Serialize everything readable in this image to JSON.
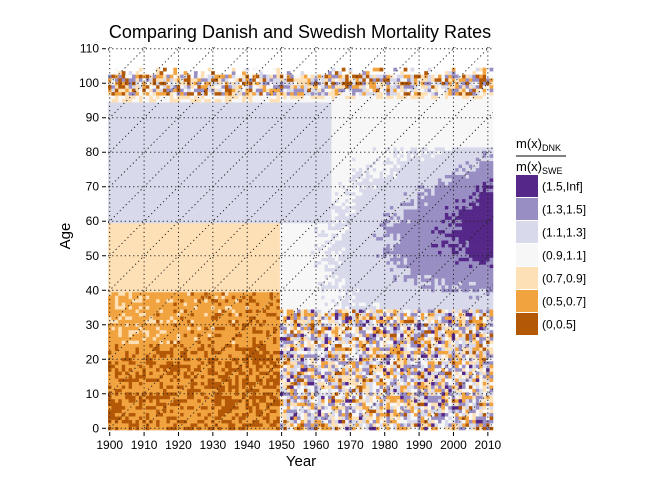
{
  "chart_data": {
    "type": "heatmap",
    "title": "Comparing Danish and Swedish Mortality Rates",
    "xlabel": "Year",
    "ylabel": "Age",
    "x_range": [
      1900,
      2011
    ],
    "y_range": [
      0,
      110
    ],
    "x_ticks": [
      1900,
      1910,
      1920,
      1930,
      1940,
      1950,
      1960,
      1970,
      1980,
      1990,
      2000,
      2010
    ],
    "y_ticks": [
      0,
      10,
      20,
      30,
      40,
      50,
      60,
      70,
      80,
      90,
      100,
      110
    ],
    "grid": "dotted",
    "legend": {
      "position": "right",
      "title_numerator": "m(x)",
      "title_numerator_sub": "DNK",
      "title_denominator": "m(x)",
      "title_denominator_sub": "SWE",
      "bins": [
        {
          "label": "(1.5,Inf]",
          "color": "#542788"
        },
        {
          "label": "(1.3,1.5]",
          "color": "#998ec3"
        },
        {
          "label": "(1.1,1.3]",
          "color": "#d8daeb"
        },
        {
          "label": "(0.9,1.1]",
          "color": "#f7f7f7"
        },
        {
          "label": "(0.7,0.9]",
          "color": "#fee0b6"
        },
        {
          "label": "(0.5,0.7]",
          "color": "#f1a340"
        },
        {
          "label": "(0,0.5]",
          "color": "#b35806"
        }
      ]
    },
    "regions": [
      {
        "years": [
          1900,
          1950
        ],
        "ages": [
          0,
          40
        ],
        "typical_bin": "(0.5,0.7]"
      },
      {
        "years": [
          1900,
          1950
        ],
        "ages": [
          40,
          60
        ],
        "typical_bin": "(0.7,0.9]"
      },
      {
        "years": [
          1900,
          1960
        ],
        "ages": [
          60,
          95
        ],
        "typical_bin": "(1.1,1.3]"
      },
      {
        "years": [
          1950,
          2011
        ],
        "ages": [
          0,
          35
        ],
        "typical_bin": "mixed (1.5,Inf] / (0,0.5]"
      },
      {
        "years": [
          1965,
          2011
        ],
        "ages": [
          35,
          80
        ],
        "typical_bin": "(1.3,1.5]"
      },
      {
        "years": [
          1980,
          2005
        ],
        "ages": [
          45,
          75
        ],
        "typical_bin": "(1.5,Inf]"
      },
      {
        "years": [
          1900,
          2011
        ],
        "ages": [
          95,
          104
        ],
        "typical_bin": "mixed extremes"
      },
      {
        "years": [
          1960,
          2011
        ],
        "ages": [
          80,
          95
        ],
        "typical_bin": "(0.9,1.1]"
      }
    ]
  }
}
